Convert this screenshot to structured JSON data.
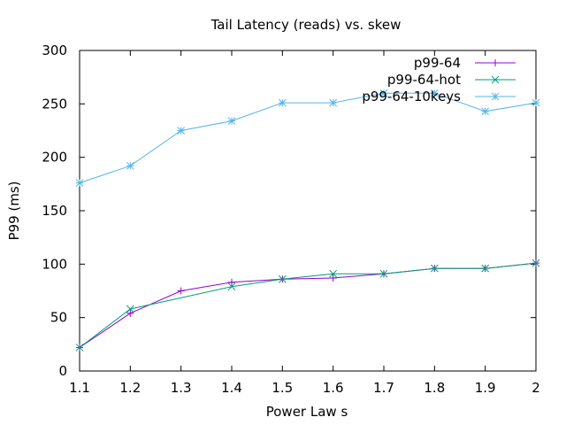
{
  "chart_data": {
    "type": "line",
    "title": "Tail Latency (reads) vs. skew",
    "xlabel": "Power Law s",
    "ylabel": "P99 (ms)",
    "xlim": [
      1.1,
      2.0
    ],
    "ylim": [
      0,
      300
    ],
    "xticks": [
      "1.1",
      "1.2",
      "1.3",
      "1.4",
      "1.5",
      "1.6",
      "1.7",
      "1.8",
      "1.9",
      "2"
    ],
    "yticks": [
      "0",
      "50",
      "100",
      "150",
      "200",
      "250",
      "300"
    ],
    "grid": false,
    "legend_position": "top-right",
    "x": [
      1.1,
      1.2,
      1.3,
      1.4,
      1.5,
      1.6,
      1.7,
      1.8,
      1.9,
      2.0
    ],
    "series": [
      {
        "name": "p99-64",
        "color": "#9400d3",
        "marker": "plus",
        "values": [
          22,
          54,
          75,
          83,
          86,
          87,
          91,
          96,
          96,
          101
        ]
      },
      {
        "name": "p99-64-hot",
        "color": "#009e73",
        "marker": "cross",
        "values": [
          22,
          58,
          null,
          79,
          86,
          91,
          91,
          96,
          96,
          101
        ]
      },
      {
        "name": "p99-64-10keys",
        "color": "#56b4e9",
        "marker": "star",
        "values": [
          176,
          192,
          225,
          234,
          251,
          251,
          260,
          260,
          243,
          251
        ]
      }
    ]
  }
}
